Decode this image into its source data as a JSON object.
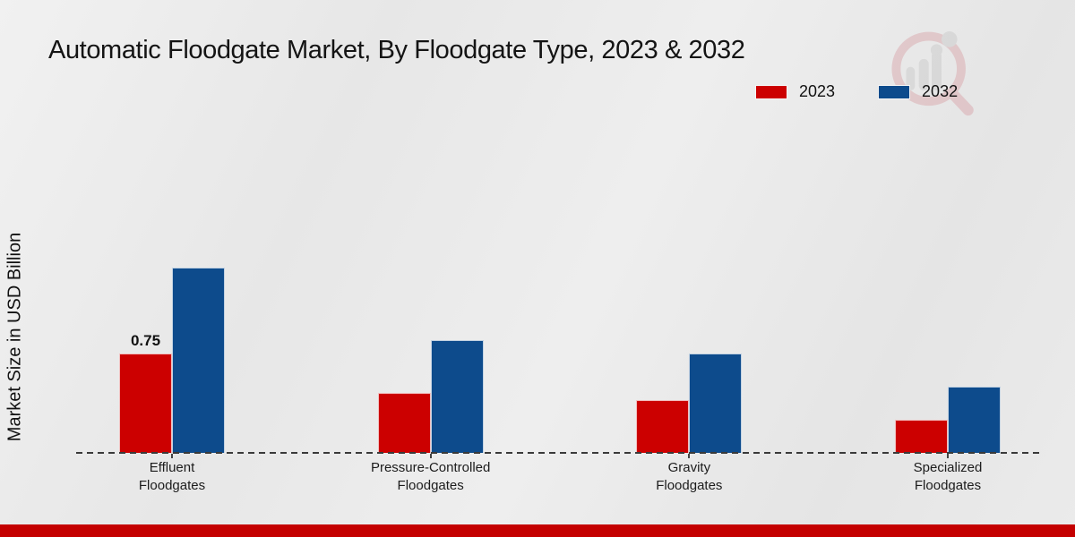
{
  "title": "Automatic Floodgate Market, By Floodgate Type, 2023 & 2032",
  "ylabel": "Market Size in USD Billion",
  "chart_data": {
    "type": "bar",
    "categories": [
      "Effluent\nFloodgates",
      "Pressure-Controlled\nFloodgates",
      "Gravity\nFloodgates",
      "Specialized\nFloodgates"
    ],
    "series": [
      {
        "name": "2023",
        "color": "#cc0000",
        "values": [
          0.75,
          0.45,
          0.4,
          0.25
        ],
        "data_labels": [
          "0.75",
          "",
          "",
          ""
        ]
      },
      {
        "name": "2032",
        "color": "#0d4b8c",
        "values": [
          1.4,
          0.85,
          0.75,
          0.5
        ],
        "data_labels": [
          "",
          "",
          "",
          ""
        ]
      }
    ],
    "title": "Automatic Floodgate Market, By Floodgate Type, 2023 & 2032",
    "xlabel": "",
    "ylabel": "Market Size in USD Billion",
    "ylim": [
      0,
      1.6
    ],
    "grid": false,
    "axis_line_style": "dashed",
    "legend_position": "top-right",
    "y_axis_ticks_visible": false
  },
  "footer": {
    "color": "#c40000"
  },
  "watermark_icon": "magnifier-bar-chart-logo"
}
